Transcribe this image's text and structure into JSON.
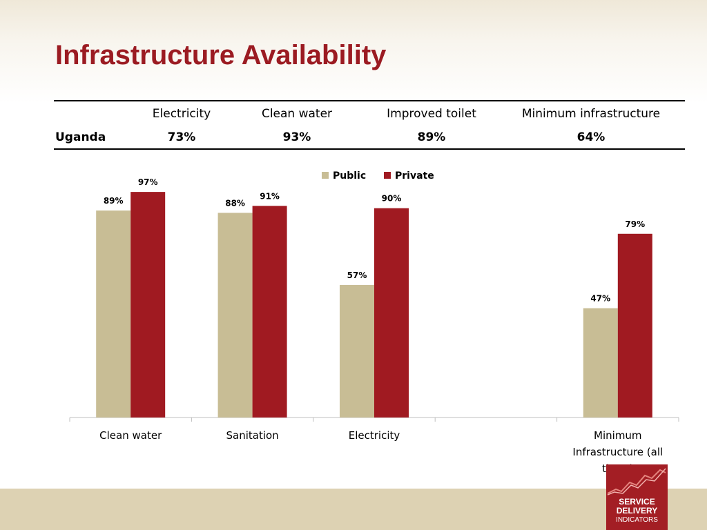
{
  "slide": {
    "title": "Infrastructure Availability"
  },
  "stats_table": {
    "headers": [
      "Electricity",
      "Clean water",
      "Improved toilet",
      "Minimum infrastructure"
    ],
    "row_label": "Uganda",
    "values": [
      "73%",
      "93%",
      "89%",
      "64%"
    ]
  },
  "chart_data": {
    "type": "bar",
    "categories": [
      "Clean water",
      "Sanitation",
      "Electricity",
      "",
      "Minimum Infrastructure (all three)"
    ],
    "category_lines": [
      [
        "Clean water"
      ],
      [
        "Sanitation"
      ],
      [
        "Electricity"
      ],
      [],
      [
        "Minimum",
        "Infrastructure (all",
        "three)"
      ]
    ],
    "series": [
      {
        "name": "Public",
        "values": [
          89,
          88,
          57,
          null,
          47
        ],
        "labels": [
          "89%",
          "88%",
          "57%",
          "",
          "47%"
        ],
        "color": "#c8bd95"
      },
      {
        "name": "Private",
        "values": [
          97,
          91,
          90,
          null,
          79
        ],
        "labels": [
          "97%",
          "91%",
          "90%",
          "",
          "79%"
        ],
        "color": "#a01a21"
      }
    ],
    "ylim": [
      0,
      100
    ],
    "legend_position": "top-center",
    "grid": false
  },
  "logo": {
    "line1": "SERVICE",
    "line2": "DELIVERY",
    "line3": "INDICATORS"
  },
  "colors": {
    "title": "#9b1b22",
    "footer": "#ddd2b3",
    "logo_bg": "#a31e24"
  }
}
